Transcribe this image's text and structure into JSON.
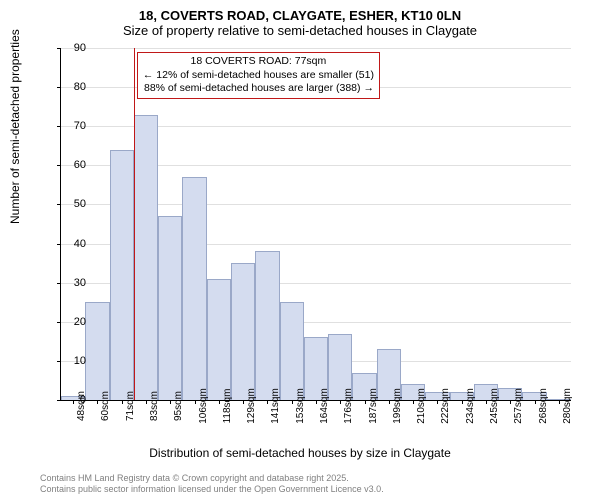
{
  "title_main": "18, COVERTS ROAD, CLAYGATE, ESHER, KT10 0LN",
  "title_sub": "Size of property relative to semi-detached houses in Claygate",
  "ylabel": "Number of semi-detached properties",
  "xlabel": "Distribution of semi-detached houses by size in Claygate",
  "chart": {
    "type": "histogram",
    "ylim": [
      0,
      90
    ],
    "ytick_step": 10,
    "background_color": "#ffffff",
    "grid_color": "#e0e0e0",
    "bar_fill": "#d4dcef",
    "bar_stroke": "#9aa8c8",
    "ref_line_color": "#c01818",
    "ref_line_x": 77,
    "annotation_border": "#c01818",
    "categories": [
      "48sqm",
      "60sqm",
      "71sqm",
      "83sqm",
      "95sqm",
      "106sqm",
      "118sqm",
      "129sqm",
      "141sqm",
      "153sqm",
      "164sqm",
      "176sqm",
      "187sqm",
      "199sqm",
      "210sqm",
      "222sqm",
      "234sqm",
      "245sqm",
      "257sqm",
      "268sqm",
      "280sqm"
    ],
    "values": [
      1,
      25,
      64,
      73,
      47,
      57,
      31,
      35,
      38,
      25,
      16,
      17,
      7,
      13,
      4,
      2,
      2,
      4,
      3,
      2,
      0
    ]
  },
  "annotation": {
    "line1": "18 COVERTS ROAD: 77sqm",
    "line2": "← 12% of semi-detached houses are smaller (51)",
    "line3": "88% of semi-detached houses are larger (388) →"
  },
  "footer1": "Contains HM Land Registry data © Crown copyright and database right 2025.",
  "footer2": "Contains public sector information licensed under the Open Government Licence v3.0."
}
